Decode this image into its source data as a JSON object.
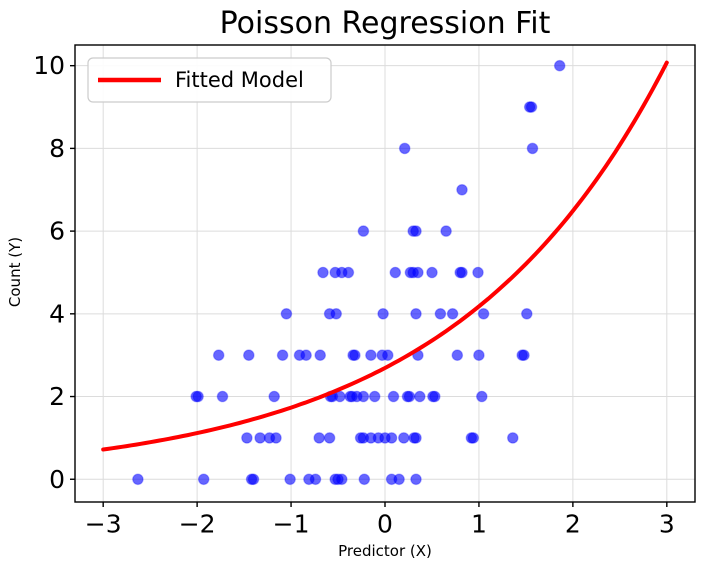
{
  "figure": {
    "background": "#ffffff"
  },
  "chart_data": {
    "type": "scatter",
    "title": "Poisson Regression Fit",
    "xlabel": "Predictor (X)",
    "ylabel": "Count (Y)",
    "xlim": [
      -3.3,
      3.3
    ],
    "ylim": [
      -0.55,
      10.5
    ],
    "grid": true,
    "grid_color": "#dcdcdc",
    "spine_color": "#000000",
    "xticks": {
      "values": [
        -3,
        -2,
        -1,
        0,
        1,
        2,
        3
      ],
      "labels": [
        "−3",
        "−2",
        "−1",
        "0",
        "1",
        "2",
        "3"
      ]
    },
    "yticks": {
      "values": [
        0,
        2,
        4,
        6,
        8,
        10
      ],
      "labels": [
        "0",
        "2",
        "4",
        "6",
        "8",
        "10"
      ]
    },
    "legend": {
      "position": "upper left",
      "entries": [
        {
          "label": "Fitted Model",
          "color": "#ff0000",
          "type": "line"
        }
      ]
    },
    "scatter": {
      "name": "observed-counts",
      "color": "#0000ff",
      "alpha": 0.6,
      "marker_radius": 5.2,
      "points": [
        [
          -2.63,
          0
        ],
        [
          -1.93,
          0
        ],
        [
          -1.42,
          0
        ],
        [
          -1.4,
          0
        ],
        [
          -1.01,
          0
        ],
        [
          -0.81,
          0
        ],
        [
          -0.74,
          0
        ],
        [
          -0.53,
          0
        ],
        [
          -0.5,
          0
        ],
        [
          -0.46,
          0
        ],
        [
          -0.22,
          0
        ],
        [
          0.07,
          0
        ],
        [
          0.15,
          0
        ],
        [
          0.33,
          0
        ],
        [
          -1.47,
          1
        ],
        [
          -1.33,
          1
        ],
        [
          -1.23,
          1
        ],
        [
          -1.16,
          1
        ],
        [
          -0.7,
          1
        ],
        [
          -0.59,
          1
        ],
        [
          -0.26,
          1
        ],
        [
          -0.23,
          1
        ],
        [
          -0.15,
          1
        ],
        [
          -0.07,
          1
        ],
        [
          0.0,
          1
        ],
        [
          0.07,
          1
        ],
        [
          0.2,
          1
        ],
        [
          0.31,
          1
        ],
        [
          0.33,
          1
        ],
        [
          0.92,
          1
        ],
        [
          0.94,
          1
        ],
        [
          1.36,
          1
        ],
        [
          -2.01,
          2
        ],
        [
          -1.99,
          2
        ],
        [
          -1.73,
          2
        ],
        [
          -1.18,
          2
        ],
        [
          -0.58,
          2
        ],
        [
          -0.56,
          2
        ],
        [
          -0.48,
          2
        ],
        [
          -0.37,
          2
        ],
        [
          -0.35,
          2
        ],
        [
          -0.3,
          2
        ],
        [
          -0.23,
          2
        ],
        [
          -0.11,
          2
        ],
        [
          0.09,
          2
        ],
        [
          0.24,
          2
        ],
        [
          0.26,
          2
        ],
        [
          0.37,
          2
        ],
        [
          0.51,
          2
        ],
        [
          0.53,
          2
        ],
        [
          1.03,
          2
        ],
        [
          -1.77,
          3
        ],
        [
          -1.45,
          3
        ],
        [
          -1.09,
          3
        ],
        [
          -0.91,
          3
        ],
        [
          -0.84,
          3
        ],
        [
          -0.69,
          3
        ],
        [
          -0.34,
          3
        ],
        [
          -0.32,
          3
        ],
        [
          -0.15,
          3
        ],
        [
          -0.03,
          3
        ],
        [
          0.03,
          3
        ],
        [
          0.35,
          3
        ],
        [
          0.77,
          3
        ],
        [
          1.0,
          3
        ],
        [
          1.46,
          3
        ],
        [
          1.48,
          3
        ],
        [
          -1.05,
          4
        ],
        [
          -0.59,
          4
        ],
        [
          -0.52,
          4
        ],
        [
          -0.02,
          4
        ],
        [
          0.33,
          4
        ],
        [
          0.59,
          4
        ],
        [
          0.72,
          4
        ],
        [
          1.05,
          4
        ],
        [
          1.51,
          4
        ],
        [
          -0.66,
          5
        ],
        [
          -0.53,
          5
        ],
        [
          -0.46,
          5
        ],
        [
          -0.39,
          5
        ],
        [
          0.11,
          5
        ],
        [
          0.27,
          5
        ],
        [
          0.3,
          5
        ],
        [
          0.35,
          5
        ],
        [
          0.5,
          5
        ],
        [
          0.8,
          5
        ],
        [
          0.82,
          5
        ],
        [
          0.99,
          5
        ],
        [
          -0.23,
          6
        ],
        [
          0.3,
          6
        ],
        [
          0.33,
          6
        ],
        [
          0.65,
          6
        ],
        [
          0.82,
          7
        ],
        [
          0.21,
          8
        ],
        [
          1.57,
          8
        ],
        [
          1.54,
          9
        ],
        [
          1.56,
          9
        ],
        [
          1.86,
          10
        ]
      ]
    },
    "fit_line": {
      "name": "Fitted Model",
      "color": "#ff0000",
      "linewidth": 4,
      "model": "y = exp(intercept + slope * x)",
      "intercept": 0.99,
      "slope": 0.44,
      "x_range": [
        -3,
        3
      ]
    }
  }
}
